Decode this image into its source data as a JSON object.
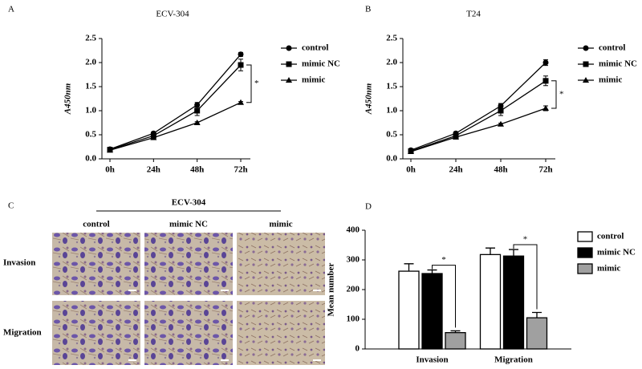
{
  "chart_data": [
    {
      "type": "line",
      "panel": "A",
      "title": "ECV-304",
      "y_label": "A450nm",
      "categories": [
        "0h",
        "24h",
        "48h",
        "72h"
      ],
      "ylim": [
        0,
        2.5
      ],
      "yticks": [
        {
          "value": 0,
          "label": "0.0"
        },
        0.5,
        {
          "value": 1,
          "label": "1.0"
        },
        1.5,
        {
          "value": 2,
          "label": "2.0"
        },
        2.5
      ],
      "series": [
        {
          "name": "control",
          "color": "#000000",
          "marker": "circle",
          "values": [
            0.2,
            0.53,
            1.12,
            2.17
          ],
          "errors": [
            0.02,
            0.03,
            0.05,
            0.04
          ]
        },
        {
          "name": "mimic NC",
          "color": "#000000",
          "marker": "square",
          "values": [
            0.19,
            0.48,
            1.0,
            1.95
          ],
          "errors": [
            0.02,
            0.03,
            0.1,
            0.12
          ]
        },
        {
          "name": "mimic",
          "color": "#000000",
          "marker": "triangle",
          "values": [
            0.18,
            0.44,
            0.75,
            1.17
          ],
          "errors": [
            0.02,
            0.02,
            0.02,
            0.02
          ]
        }
      ],
      "annotations": [
        "*"
      ]
    },
    {
      "type": "line",
      "panel": "B",
      "title": "T24",
      "y_label": "A450nm",
      "categories": [
        "0h",
        "24h",
        "48h",
        "72h"
      ],
      "ylim": [
        0,
        2.5
      ],
      "yticks": [
        {
          "value": 0,
          "label": "0.0"
        },
        0.5,
        {
          "value": 1,
          "label": "1.0"
        },
        1.5,
        {
          "value": 2,
          "label": "2.0"
        },
        2.5
      ],
      "series": [
        {
          "name": "control",
          "color": "#000000",
          "marker": "circle",
          "values": [
            0.18,
            0.53,
            1.1,
            2.0
          ],
          "errors": [
            0.02,
            0.03,
            0.05,
            0.06
          ]
        },
        {
          "name": "mimic NC",
          "color": "#000000",
          "marker": "square",
          "values": [
            0.16,
            0.48,
            1.0,
            1.62
          ],
          "errors": [
            0.02,
            0.03,
            0.1,
            0.1
          ]
        },
        {
          "name": "mimic",
          "color": "#000000",
          "marker": "triangle",
          "values": [
            0.15,
            0.45,
            0.72,
            1.05
          ],
          "errors": [
            0.02,
            0.02,
            0.02,
            0.05
          ]
        }
      ],
      "annotations": [
        "*"
      ]
    },
    {
      "type": "bar",
      "panel": "D",
      "y_label": "Mean number",
      "categories": [
        "Invasion",
        "Migration"
      ],
      "ylim": [
        0,
        400
      ],
      "yticks": [
        0,
        100,
        200,
        300,
        400
      ],
      "series": [
        {
          "name": "control",
          "color": "#ffffff",
          "values": [
            262,
            318
          ],
          "errors": [
            25,
            22
          ]
        },
        {
          "name": "mimic NC",
          "color": "#000000",
          "values": [
            254,
            313
          ],
          "errors": [
            12,
            22
          ]
        },
        {
          "name": "mimic",
          "color": "#a0a0a0",
          "values": [
            55,
            105
          ],
          "errors": [
            6,
            18
          ]
        }
      ],
      "annotations": [
        "*",
        "*"
      ]
    }
  ],
  "panel_c": {
    "panel": "C",
    "title": "ECV-304",
    "columns": [
      "control",
      "mimic NC",
      "mimic"
    ],
    "rows": [
      "Invasion",
      "Migration"
    ]
  }
}
